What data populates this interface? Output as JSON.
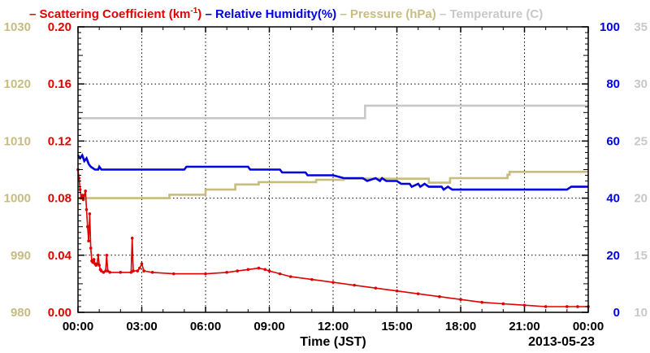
{
  "chart_data": {
    "type": "line",
    "legend": [
      {
        "prefix": "– ",
        "label": "Scattering Coefficient (km",
        "superscript": "-1",
        "suffix": ")",
        "color": "#e00000"
      },
      {
        "prefix": " – ",
        "label": "Relative Humidity(%)",
        "color": "#0000e0"
      },
      {
        "prefix": " – ",
        "label": "Pressure (hPa)",
        "color": "#c8bc80"
      },
      {
        "prefix": " – ",
        "label": "Temperature (C)",
        "color": "#c8c8c8"
      }
    ],
    "xlabel": "Time (JST)",
    "date_label": "2013-05-23",
    "x_ticks": [
      "00:00",
      "03:00",
      "06:00",
      "09:00",
      "12:00",
      "15:00",
      "18:00",
      "21:00",
      "00:00"
    ],
    "x_range_hours": [
      0,
      24
    ],
    "grid": true,
    "axes": {
      "scattering": {
        "range": [
          0.0,
          0.2
        ],
        "ticks": [
          "0.00",
          "0.04",
          "0.08",
          "0.12",
          "0.16",
          "0.20"
        ],
        "color": "#e00000",
        "side": "left"
      },
      "pressure": {
        "range": [
          980,
          1030
        ],
        "ticks": [
          "980",
          "990",
          "1000",
          "1010",
          "1020",
          "1030"
        ],
        "color": "#c8bc80",
        "side": "far-left"
      },
      "humidity": {
        "range": [
          0,
          100
        ],
        "ticks": [
          "0",
          "20",
          "40",
          "60",
          "80",
          "100"
        ],
        "color": "#0000e0",
        "side": "right"
      },
      "temperature": {
        "range": [
          10,
          35
        ],
        "ticks": [
          "10",
          "15",
          "20",
          "25",
          "30",
          "35"
        ],
        "color": "#c8c8c8",
        "side": "far-right"
      }
    },
    "series": [
      {
        "name": "Temperature (C)",
        "axis": "temperature",
        "color": "#c8c8c8",
        "points": [
          [
            0,
            27
          ],
          [
            13.5,
            27
          ],
          [
            13.5,
            28.1
          ],
          [
            24,
            28.1
          ]
        ]
      },
      {
        "name": "Pressure (hPa)",
        "axis": "pressure",
        "color": "#c8bc80",
        "points": [
          [
            0,
            1000
          ],
          [
            4.3,
            1000
          ],
          [
            4.3,
            1000.6
          ],
          [
            6,
            1000.6
          ],
          [
            6,
            1001.5
          ],
          [
            7.4,
            1001.5
          ],
          [
            7.4,
            1002.4
          ],
          [
            8.5,
            1002.4
          ],
          [
            8.5,
            1002.8
          ],
          [
            11.2,
            1002.8
          ],
          [
            11.2,
            1003.2
          ],
          [
            12.5,
            1003.2
          ],
          [
            12.5,
            1003.4
          ],
          [
            16.5,
            1003.4
          ],
          [
            16.5,
            1002.7
          ],
          [
            17.5,
            1002.7
          ],
          [
            17.5,
            1003.5
          ],
          [
            18.5,
            1003.5
          ],
          [
            18.5,
            1003.5
          ],
          [
            20.2,
            1003.5
          ],
          [
            20.2,
            1004.1
          ],
          [
            20.3,
            1004.1
          ],
          [
            20.3,
            1004.6
          ],
          [
            24,
            1004.6
          ]
        ]
      },
      {
        "name": "Relative Humidity(%)",
        "axis": "humidity",
        "color": "#0000e0",
        "points": [
          [
            0,
            55
          ],
          [
            0.1,
            54
          ],
          [
            0.2,
            55
          ],
          [
            0.3,
            53
          ],
          [
            0.4,
            54
          ],
          [
            0.5,
            52
          ],
          [
            0.6,
            51
          ],
          [
            0.8,
            50
          ],
          [
            0.95,
            50
          ],
          [
            1.0,
            51
          ],
          [
            1.1,
            50
          ],
          [
            2.0,
            50
          ],
          [
            4.0,
            50
          ],
          [
            5.0,
            50
          ],
          [
            5.1,
            51
          ],
          [
            8.0,
            51
          ],
          [
            8.1,
            50
          ],
          [
            9.5,
            50
          ],
          [
            9.6,
            49
          ],
          [
            10.7,
            49
          ],
          [
            10.8,
            48
          ],
          [
            12.0,
            48
          ],
          [
            12.5,
            47
          ],
          [
            13.4,
            47
          ],
          [
            13.6,
            46
          ],
          [
            14.0,
            47
          ],
          [
            14.2,
            46
          ],
          [
            14.3,
            47
          ],
          [
            14.5,
            46
          ],
          [
            15.0,
            46
          ],
          [
            15.2,
            45
          ],
          [
            15.6,
            45
          ],
          [
            15.7,
            44
          ],
          [
            16.0,
            45
          ],
          [
            16.1,
            44
          ],
          [
            16.3,
            45
          ],
          [
            16.5,
            44
          ],
          [
            16.8,
            44
          ],
          [
            17.1,
            44
          ],
          [
            17.2,
            43
          ],
          [
            17.4,
            44
          ],
          [
            17.6,
            43
          ],
          [
            18.5,
            43
          ],
          [
            20.0,
            43
          ],
          [
            21.0,
            43
          ],
          [
            22.0,
            43
          ],
          [
            23.0,
            43
          ],
          [
            23.2,
            44
          ],
          [
            24.0,
            44
          ]
        ]
      },
      {
        "name": "Scattering Coefficient (km-1)",
        "axis": "scattering",
        "color": "#e00000",
        "points": [
          [
            0.0,
            0.1
          ],
          [
            0.05,
            0.094
          ],
          [
            0.1,
            0.086
          ],
          [
            0.15,
            0.08
          ],
          [
            0.2,
            0.082
          ],
          [
            0.25,
            0.079
          ],
          [
            0.3,
            0.082
          ],
          [
            0.35,
            0.085
          ],
          [
            0.4,
            0.072
          ],
          [
            0.45,
            0.06
          ],
          [
            0.5,
            0.05
          ],
          [
            0.55,
            0.069
          ],
          [
            0.6,
            0.045
          ],
          [
            0.65,
            0.036
          ],
          [
            0.7,
            0.035
          ],
          [
            0.75,
            0.037
          ],
          [
            0.8,
            0.034
          ],
          [
            0.85,
            0.033
          ],
          [
            0.9,
            0.034
          ],
          [
            0.95,
            0.04
          ],
          [
            1.0,
            0.033
          ],
          [
            1.05,
            0.03
          ],
          [
            1.1,
            0.029
          ],
          [
            1.2,
            0.028
          ],
          [
            1.3,
            0.029
          ],
          [
            1.35,
            0.04
          ],
          [
            1.4,
            0.029
          ],
          [
            1.5,
            0.028
          ],
          [
            2.0,
            0.028
          ],
          [
            2.5,
            0.028
          ],
          [
            2.55,
            0.052
          ],
          [
            2.6,
            0.029
          ],
          [
            2.8,
            0.029
          ],
          [
            2.9,
            0.031
          ],
          [
            3.0,
            0.034
          ],
          [
            3.1,
            0.029
          ],
          [
            3.5,
            0.028
          ],
          [
            4.5,
            0.027
          ],
          [
            6.0,
            0.027
          ],
          [
            7.0,
            0.028
          ],
          [
            7.5,
            0.029
          ],
          [
            8.0,
            0.03
          ],
          [
            8.5,
            0.031
          ],
          [
            8.8,
            0.03
          ],
          [
            9.0,
            0.029
          ],
          [
            9.5,
            0.027
          ],
          [
            10.0,
            0.025
          ],
          [
            11.0,
            0.023
          ],
          [
            12.0,
            0.021
          ],
          [
            13.0,
            0.019
          ],
          [
            14.0,
            0.017
          ],
          [
            15.0,
            0.015
          ],
          [
            16.0,
            0.013
          ],
          [
            17.0,
            0.011
          ],
          [
            18.0,
            0.009
          ],
          [
            19.0,
            0.007
          ],
          [
            20.0,
            0.006
          ],
          [
            21.0,
            0.005
          ],
          [
            22.0,
            0.004
          ],
          [
            23.0,
            0.004
          ],
          [
            23.5,
            0.004
          ],
          [
            24.0,
            0.004
          ]
        ]
      }
    ]
  }
}
